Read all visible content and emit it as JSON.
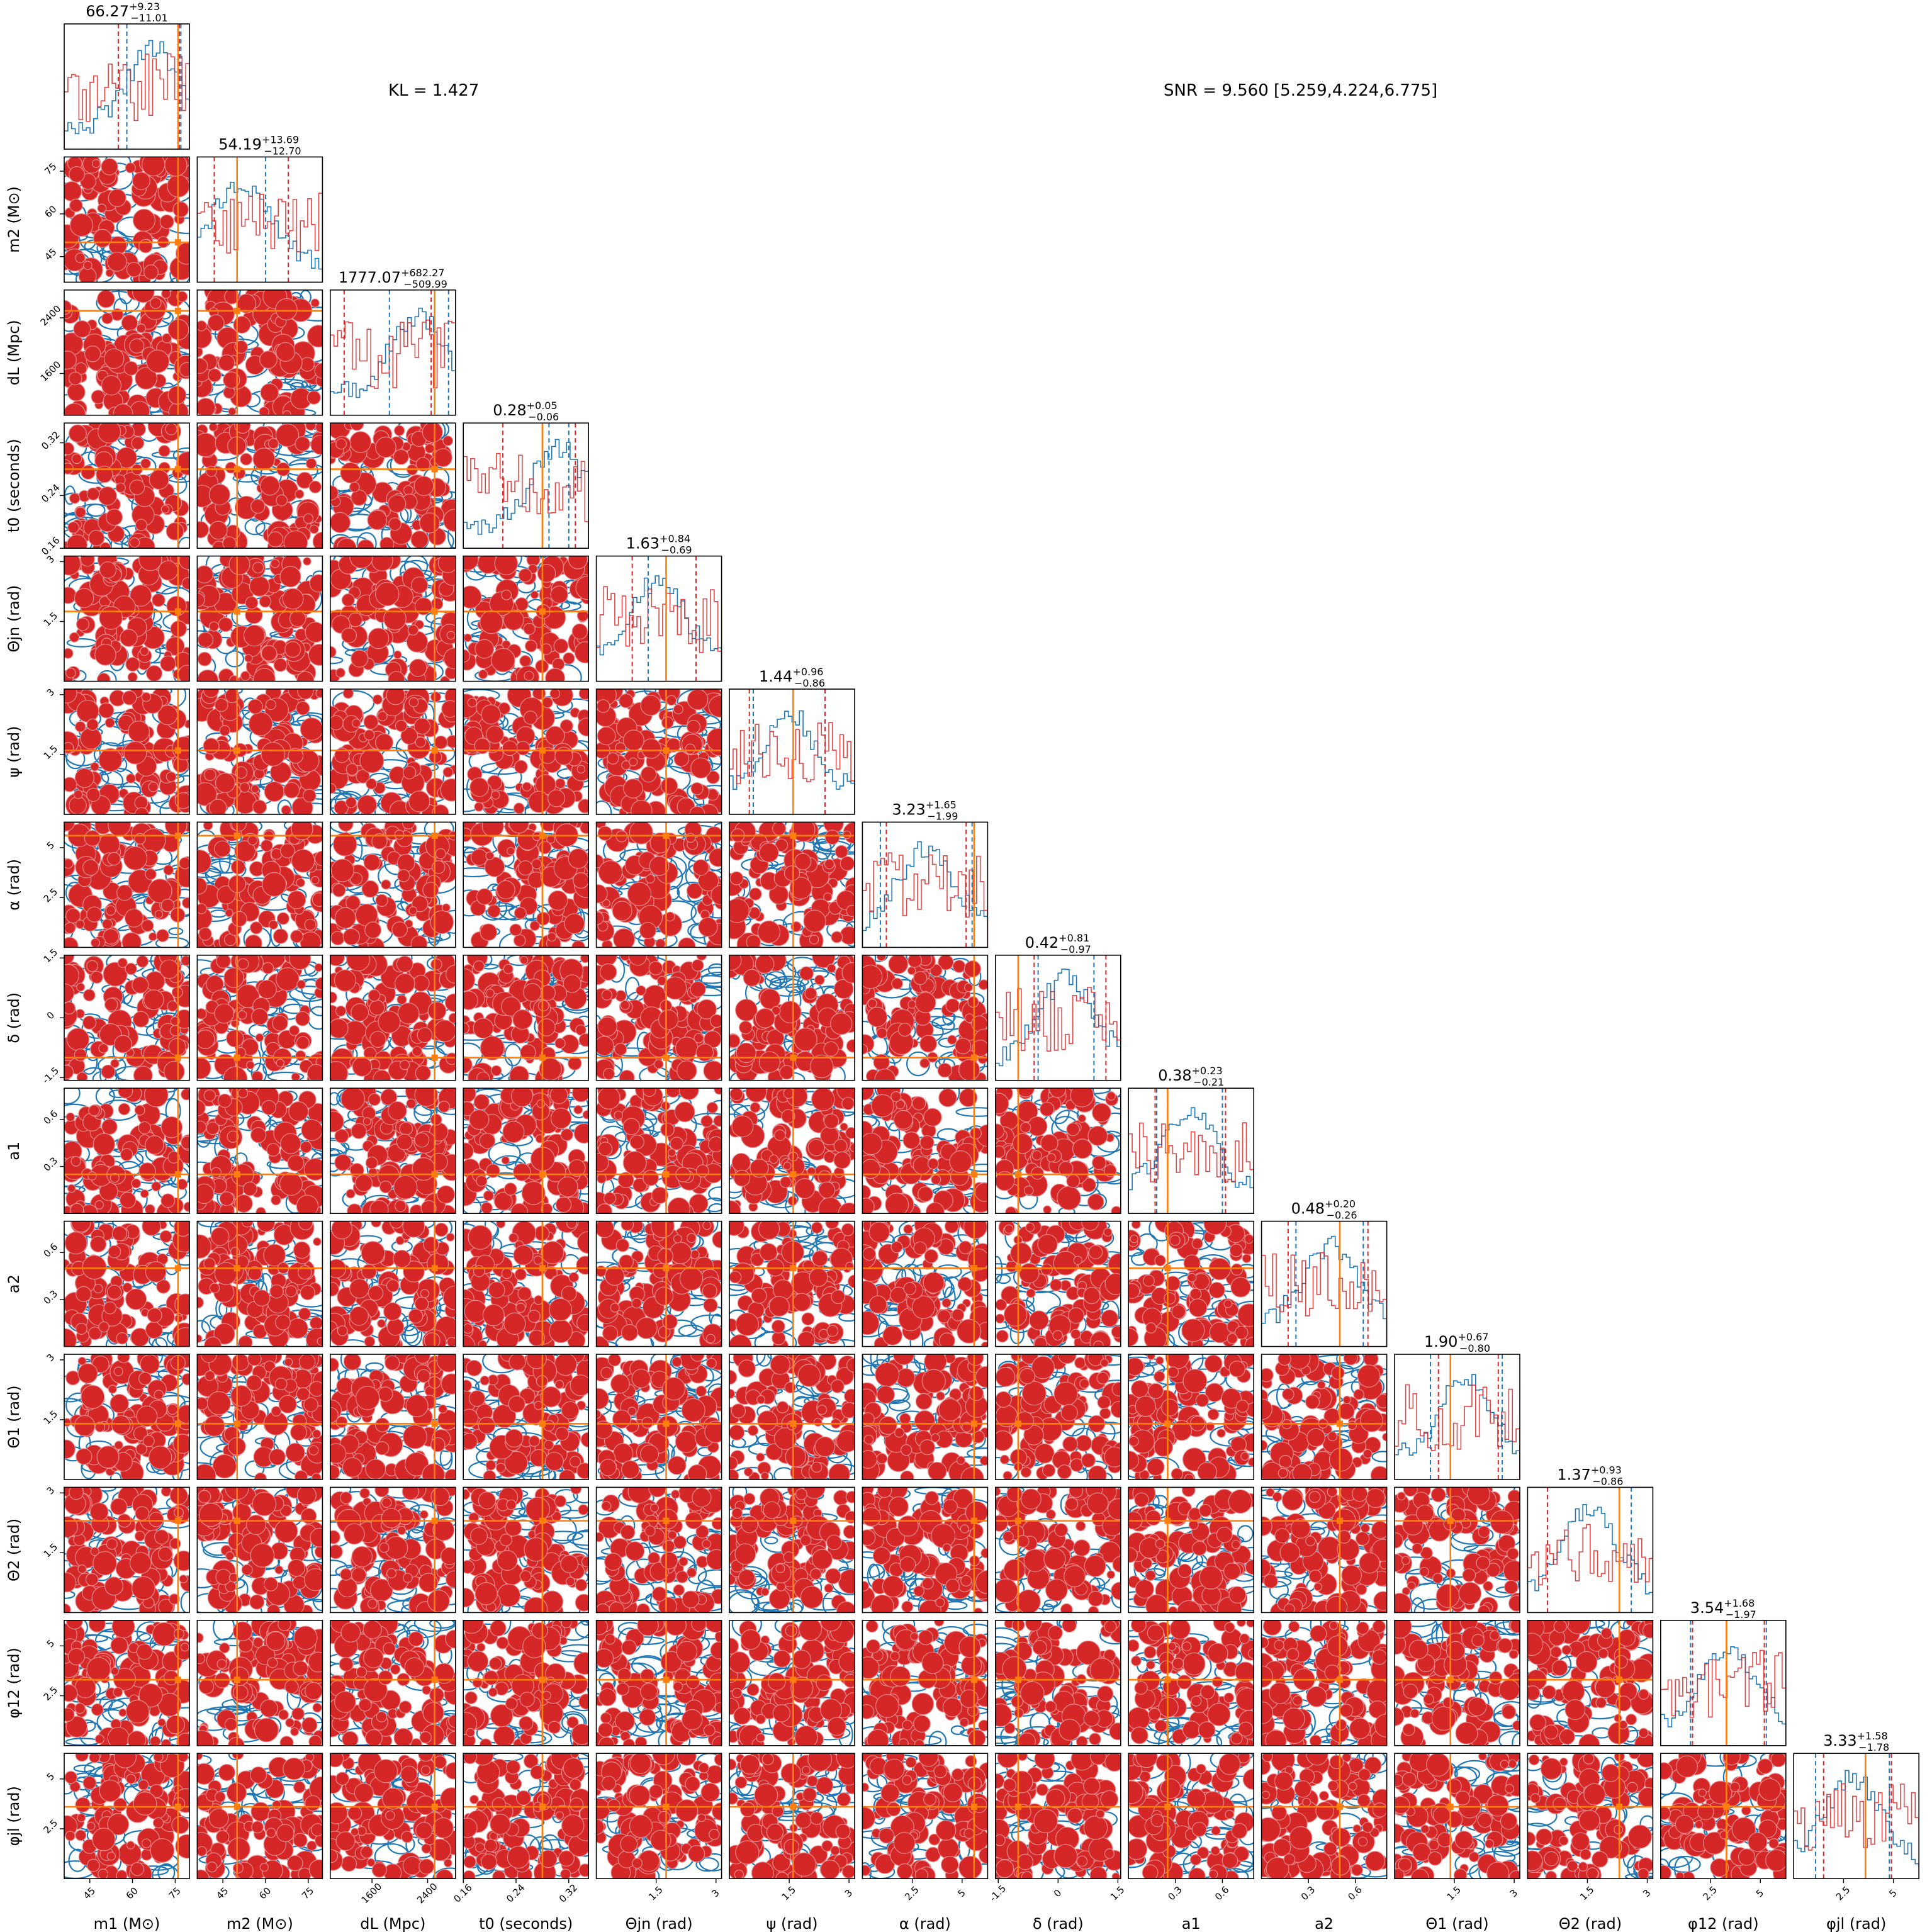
{
  "annotations": {
    "kl": "KL = 1.427",
    "snr": "SNR = 9.560 [5.259,4.224,6.775]"
  },
  "chart_data": {
    "type": "corner",
    "colors": {
      "blue": "#1f77b4",
      "red": "#d62728",
      "truth": "#ff7f0e"
    },
    "parameters": [
      {
        "label": "m1 (M⊙)",
        "title": {
          "median": "66.27",
          "plus": "+9.23",
          "minus": "−11.01"
        },
        "range": [
          36,
          80
        ],
        "ticks": [
          45,
          60,
          75
        ],
        "truth": 76,
        "q_blue": [
          58,
          77
        ],
        "q_red": [
          55,
          76.5
        ]
      },
      {
        "label": "m2 (M⊙)",
        "title": {
          "median": "54.19",
          "plus": "+13.69",
          "minus": "−12.70"
        },
        "range": [
          36,
          80
        ],
        "ticks": [
          45,
          60,
          75
        ],
        "truth": 50,
        "q_blue": [
          42,
          60
        ],
        "q_red": [
          42,
          68
        ]
      },
      {
        "label": "dL (Mpc)",
        "title": {
          "median": "1777.07",
          "plus": "+682.27",
          "minus": "−509.99"
        },
        "range": [
          1000,
          2800
        ],
        "ticks": [
          1600,
          2400
        ],
        "truth": 2500,
        "q_blue": [
          1850,
          2700
        ],
        "q_red": [
          1200,
          2450
        ]
      },
      {
        "label": "t0 (seconds)",
        "title": {
          "median": "0.28",
          "plus": "+0.05",
          "minus": "−0.06"
        },
        "range": [
          0.16,
          0.35
        ],
        "ticks": [
          0.16,
          0.24,
          0.32
        ],
        "truth": 0.28,
        "q_blue": [
          0.29,
          0.32
        ],
        "q_red": [
          0.22,
          0.33
        ]
      },
      {
        "label": "Θjn (rad)",
        "title": {
          "median": "1.63",
          "plus": "+0.84",
          "minus": "−0.69"
        },
        "range": [
          0,
          3.14
        ],
        "ticks": [
          1.5,
          3.0
        ],
        "truth": 1.75,
        "q_blue": [
          1.3,
          1.75
        ],
        "q_red": [
          0.9,
          2.5
        ]
      },
      {
        "label": "ψ (rad)",
        "title": {
          "median": "1.44",
          "plus": "+0.96",
          "minus": "−0.86"
        },
        "range": [
          0,
          3.14
        ],
        "ticks": [
          1.5,
          3.0
        ],
        "truth": 1.6,
        "q_blue": [
          0.6,
          2.4
        ],
        "q_red": [
          0.5,
          2.4
        ]
      },
      {
        "label": "α (rad)",
        "title": {
          "median": "3.23",
          "plus": "+1.65",
          "minus": "−1.99"
        },
        "range": [
          0,
          6.28
        ],
        "ticks": [
          2.5,
          5.0
        ],
        "truth": 5.6,
        "q_blue": [
          0.9,
          5.5
        ],
        "q_red": [
          1.2,
          5.2
        ]
      },
      {
        "label": "δ (rad)",
        "title": {
          "median": "0.42",
          "plus": "+0.81",
          "minus": "−0.97"
        },
        "range": [
          -1.57,
          1.57
        ],
        "ticks": [
          -1.5,
          0.0,
          1.5
        ],
        "truth": -1.0,
        "q_blue": [
          -0.5,
          0.9
        ],
        "q_red": [
          -0.6,
          1.2
        ]
      },
      {
        "label": "a1",
        "title": {
          "median": "0.38",
          "plus": "+0.23",
          "minus": "−0.21"
        },
        "range": [
          0,
          0.8
        ],
        "ticks": [
          0.3,
          0.6
        ],
        "truth": 0.25,
        "q_blue": [
          0.18,
          0.6
        ],
        "q_red": [
          0.17,
          0.62
        ]
      },
      {
        "label": "a2",
        "title": {
          "median": "0.48",
          "plus": "+0.20",
          "minus": "−0.26"
        },
        "range": [
          0,
          0.8
        ],
        "ticks": [
          0.3,
          0.6
        ],
        "truth": 0.5,
        "q_blue": [
          0.22,
          0.65
        ],
        "q_red": [
          0.17,
          0.68
        ]
      },
      {
        "label": "Θ1 (rad)",
        "title": {
          "median": "1.90",
          "plus": "+0.67",
          "minus": "−0.80"
        },
        "range": [
          0,
          3.14
        ],
        "ticks": [
          1.5,
          3.0
        ],
        "truth": 1.4,
        "q_blue": [
          0.9,
          2.7
        ],
        "q_red": [
          1.1,
          2.6
        ]
      },
      {
        "label": "Θ2 (rad)",
        "title": {
          "median": "1.37",
          "plus": "+0.93",
          "minus": "−0.86"
        },
        "range": [
          0,
          3.14
        ],
        "ticks": [
          1.5,
          3.0
        ],
        "truth": 2.3,
        "q_blue": [
          0.5,
          2.6
        ],
        "q_red": [
          0.5,
          2.3
        ]
      },
      {
        "label": "φ12 (rad)",
        "title": {
          "median": "3.54",
          "plus": "+1.68",
          "minus": "−1.97"
        },
        "range": [
          0,
          6.28
        ],
        "ticks": [
          2.5,
          5.0
        ],
        "truth": 3.3,
        "q_blue": [
          1.5,
          5.3
        ],
        "q_red": [
          1.6,
          5.2
        ]
      },
      {
        "label": "φjl (rad)",
        "title": {
          "median": "3.33",
          "plus": "+1.58",
          "minus": "−1.78"
        },
        "range": [
          0,
          6.28
        ],
        "ticks": [
          2.5,
          5.0
        ],
        "truth": 3.6,
        "q_blue": [
          1.1,
          4.8
        ],
        "q_red": [
          1.5,
          4.9
        ]
      }
    ]
  }
}
